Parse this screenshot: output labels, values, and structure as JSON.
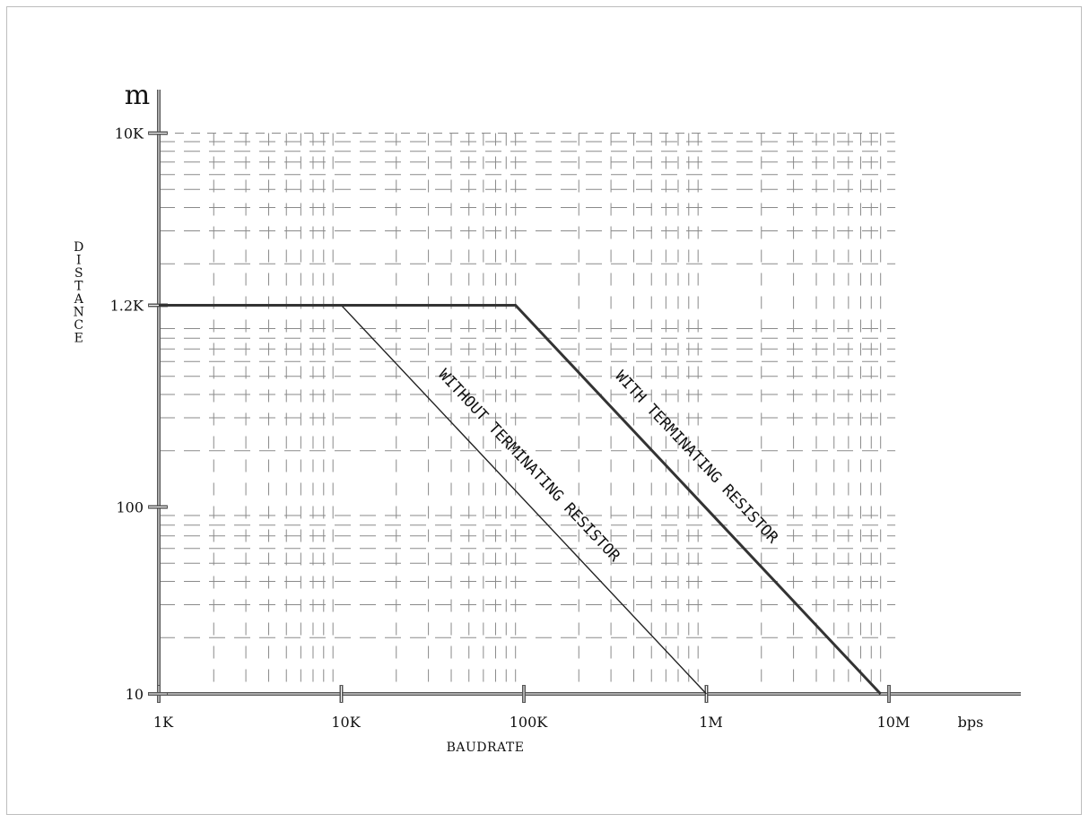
{
  "chart_data": {
    "type": "line",
    "x_scale": "log",
    "y_scale": "log",
    "xlim": [
      1000,
      30000000
    ],
    "ylim": [
      10,
      10000
    ],
    "x_ticks": [
      {
        "value": 1000,
        "label": "1K"
      },
      {
        "value": 10000,
        "label": "10K"
      },
      {
        "value": 100000,
        "label": "100K"
      },
      {
        "value": 1000000,
        "label": "1M"
      },
      {
        "value": 10000000,
        "label": "10M"
      }
    ],
    "y_ticks": [
      {
        "value": 10,
        "label": "10"
      },
      {
        "value": 100,
        "label": "100"
      },
      {
        "value": 1200,
        "label": "1.2K"
      },
      {
        "value": 10000,
        "label": "10K"
      }
    ],
    "x_unit": "bps",
    "y_unit": "m",
    "xlabel": "BAUDRATE",
    "ylabel": "DISTANCE",
    "grid": true,
    "series": [
      {
        "label": "WITHOUT TERMINATING RESISTOR",
        "x": [
          1000,
          10000,
          1000000
        ],
        "y": [
          1200,
          1200,
          10
        ],
        "color": "#222222"
      },
      {
        "label": "WITH TERMINATING RESISTOR",
        "x": [
          1000,
          90000,
          9000000
        ],
        "y": [
          1200,
          1200,
          10
        ],
        "color": "#333333"
      }
    ]
  }
}
